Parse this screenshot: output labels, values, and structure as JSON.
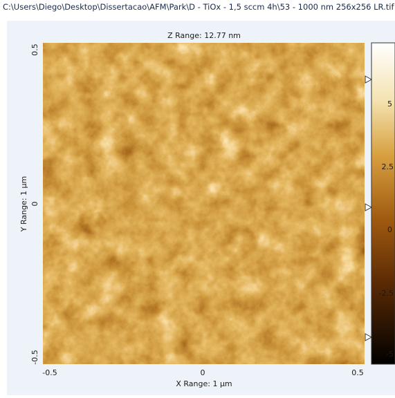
{
  "window": {
    "title": "C:\\Users\\Diego\\Desktop\\Dissertacao\\AFM\\Park\\D - TiOx - 1,5 sccm 4h\\53 - 1000 nm 256x256 LR.tif"
  },
  "image": {
    "z_range": "Z Range:  12.77 nm",
    "y_axis": {
      "label": "Y Range: 1 µm",
      "ticks": [
        "0.5",
        "0",
        "-0.5"
      ]
    },
    "x_axis": {
      "label": "X Range: 1 µm",
      "ticks": [
        "-0.5",
        "0",
        "0.5"
      ]
    }
  },
  "colorbar": {
    "ticks": [
      "5",
      "2.5",
      "0",
      "-2.5",
      "-5"
    ]
  }
}
